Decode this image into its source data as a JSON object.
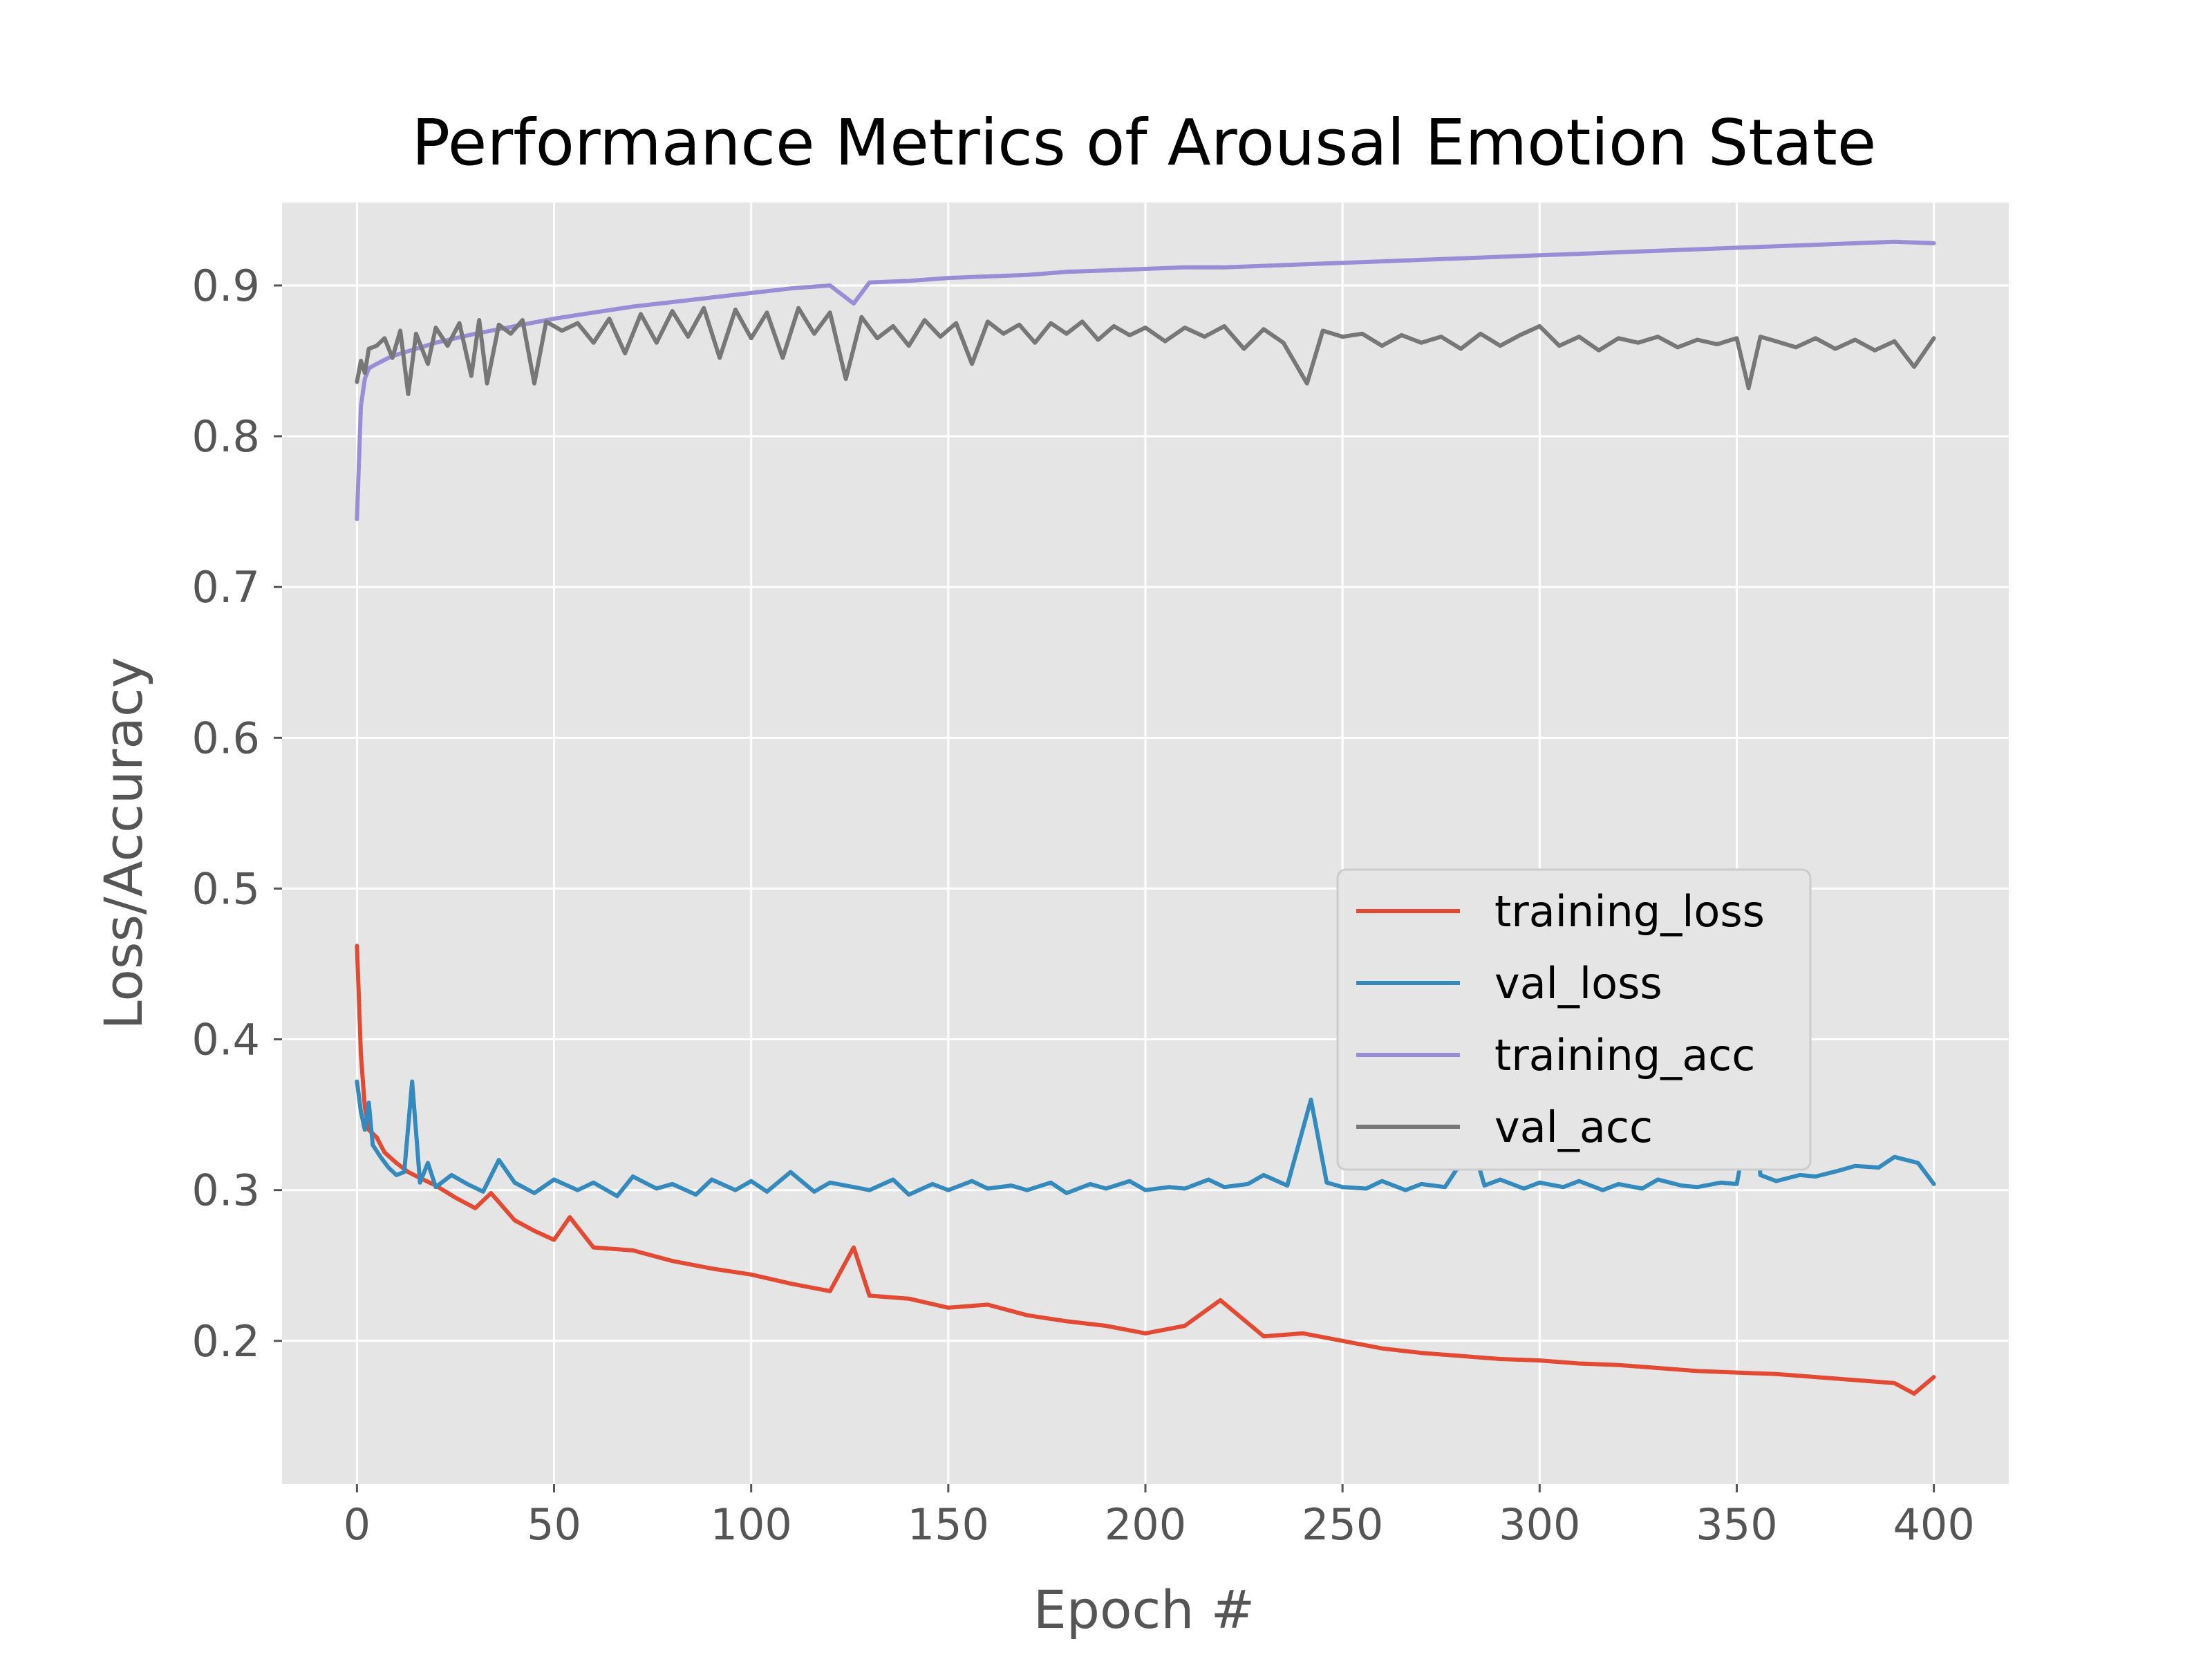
{
  "chart_data": {
    "type": "line",
    "title": "Performance Metrics of Arousal Emotion State",
    "xlabel": "Epoch #",
    "ylabel": "Loss/Accuracy",
    "xlim": [
      -19,
      419
    ],
    "ylim": [
      0.105,
      0.955
    ],
    "xticks": [
      0,
      50,
      100,
      150,
      200,
      250,
      300,
      350,
      400
    ],
    "xtick_labels": [
      "0",
      "50",
      "100",
      "150",
      "200",
      "250",
      "300",
      "350",
      "400"
    ],
    "yticks": [
      0.2,
      0.3,
      0.4,
      0.5,
      0.6,
      0.7,
      0.8,
      0.9
    ],
    "ytick_labels": [
      "0.2",
      "0.3",
      "0.4",
      "0.5",
      "0.6",
      "0.7",
      "0.8",
      "0.9"
    ],
    "grid": true,
    "legend_position": "center-right",
    "background_color": "#e5e5e5",
    "grid_color": "#ffffff",
    "series": [
      {
        "name": "training_loss",
        "color": "#e24a33",
        "x": [
          0,
          1,
          2,
          3,
          5,
          7,
          10,
          13,
          16,
          20,
          25,
          30,
          34,
          40,
          45,
          50,
          54,
          60,
          70,
          80,
          90,
          100,
          110,
          120,
          126,
          130,
          140,
          150,
          160,
          170,
          180,
          190,
          200,
          210,
          219,
          230,
          240,
          250,
          260,
          270,
          280,
          290,
          300,
          310,
          320,
          330,
          340,
          350,
          360,
          370,
          380,
          390,
          395,
          400
        ],
        "y": [
          0.462,
          0.39,
          0.355,
          0.34,
          0.335,
          0.325,
          0.318,
          0.312,
          0.308,
          0.303,
          0.295,
          0.288,
          0.298,
          0.28,
          0.273,
          0.267,
          0.282,
          0.262,
          0.26,
          0.253,
          0.248,
          0.244,
          0.238,
          0.233,
          0.262,
          0.23,
          0.228,
          0.222,
          0.224,
          0.217,
          0.213,
          0.21,
          0.205,
          0.21,
          0.227,
          0.203,
          0.205,
          0.2,
          0.195,
          0.192,
          0.19,
          0.188,
          0.187,
          0.185,
          0.184,
          0.182,
          0.18,
          0.179,
          0.178,
          0.176,
          0.174,
          0.172,
          0.165,
          0.176
        ]
      },
      {
        "name": "val_loss",
        "color": "#348abd",
        "x": [
          0,
          1,
          2,
          3,
          4,
          6,
          8,
          10,
          12,
          14,
          16,
          18,
          20,
          24,
          28,
          32,
          36,
          40,
          45,
          50,
          56,
          60,
          66,
          70,
          76,
          80,
          86,
          90,
          96,
          100,
          104,
          110,
          116,
          120,
          126,
          130,
          136,
          140,
          146,
          150,
          156,
          160,
          166,
          170,
          176,
          180,
          186,
          190,
          196,
          200,
          206,
          210,
          216,
          220,
          226,
          230,
          236,
          242,
          246,
          250,
          256,
          260,
          266,
          270,
          276,
          283,
          286,
          290,
          296,
          300,
          306,
          310,
          316,
          320,
          326,
          330,
          336,
          340,
          346,
          350,
          354,
          356,
          360,
          366,
          370,
          376,
          380,
          386,
          390,
          396,
          400
        ],
        "y": [
          0.372,
          0.352,
          0.34,
          0.358,
          0.33,
          0.322,
          0.315,
          0.31,
          0.312,
          0.372,
          0.305,
          0.318,
          0.302,
          0.31,
          0.304,
          0.299,
          0.32,
          0.305,
          0.298,
          0.307,
          0.3,
          0.305,
          0.296,
          0.309,
          0.301,
          0.304,
          0.297,
          0.307,
          0.3,
          0.306,
          0.299,
          0.312,
          0.299,
          0.305,
          0.302,
          0.3,
          0.307,
          0.297,
          0.304,
          0.3,
          0.306,
          0.301,
          0.303,
          0.3,
          0.305,
          0.298,
          0.304,
          0.301,
          0.306,
          0.3,
          0.302,
          0.301,
          0.307,
          0.302,
          0.304,
          0.31,
          0.303,
          0.36,
          0.305,
          0.302,
          0.301,
          0.306,
          0.3,
          0.304,
          0.302,
          0.33,
          0.303,
          0.307,
          0.301,
          0.305,
          0.302,
          0.306,
          0.3,
          0.304,
          0.301,
          0.307,
          0.303,
          0.302,
          0.305,
          0.304,
          0.363,
          0.31,
          0.306,
          0.31,
          0.309,
          0.313,
          0.316,
          0.315,
          0.322,
          0.318,
          0.304
        ]
      },
      {
        "name": "training_acc",
        "color": "#988ed5",
        "x": [
          0,
          1,
          2,
          3,
          5,
          8,
          10,
          15,
          20,
          25,
          30,
          40,
          50,
          60,
          70,
          80,
          90,
          100,
          110,
          120,
          126,
          130,
          140,
          150,
          160,
          170,
          180,
          190,
          200,
          210,
          220,
          230,
          240,
          250,
          260,
          270,
          280,
          290,
          300,
          310,
          320,
          330,
          340,
          350,
          360,
          370,
          380,
          390,
          400
        ],
        "y": [
          0.745,
          0.82,
          0.838,
          0.845,
          0.848,
          0.852,
          0.854,
          0.858,
          0.862,
          0.865,
          0.868,
          0.873,
          0.878,
          0.882,
          0.886,
          0.889,
          0.892,
          0.895,
          0.898,
          0.9,
          0.888,
          0.902,
          0.903,
          0.905,
          0.906,
          0.907,
          0.909,
          0.91,
          0.911,
          0.912,
          0.912,
          0.913,
          0.914,
          0.915,
          0.916,
          0.917,
          0.918,
          0.919,
          0.92,
          0.921,
          0.922,
          0.923,
          0.924,
          0.925,
          0.926,
          0.927,
          0.928,
          0.929,
          0.928
        ]
      },
      {
        "name": "val_acc",
        "color": "#777777",
        "x": [
          0,
          1,
          2,
          3,
          5,
          7,
          9,
          11,
          13,
          15,
          18,
          20,
          23,
          26,
          29,
          31,
          33,
          36,
          39,
          42,
          45,
          48,
          52,
          56,
          60,
          64,
          68,
          72,
          76,
          80,
          84,
          88,
          92,
          96,
          100,
          104,
          108,
          112,
          116,
          120,
          124,
          128,
          132,
          136,
          140,
          144,
          148,
          152,
          156,
          160,
          164,
          168,
          172,
          176,
          180,
          184,
          188,
          192,
          196,
          200,
          205,
          210,
          215,
          220,
          225,
          230,
          235,
          241,
          245,
          250,
          255,
          260,
          265,
          270,
          275,
          280,
          285,
          290,
          295,
          300,
          305,
          310,
          315,
          320,
          325,
          330,
          335,
          340,
          345,
          350,
          353,
          356,
          360,
          365,
          370,
          375,
          380,
          385,
          390,
          395,
          400
        ],
        "y": [
          0.836,
          0.85,
          0.842,
          0.858,
          0.86,
          0.865,
          0.852,
          0.87,
          0.828,
          0.868,
          0.848,
          0.872,
          0.86,
          0.875,
          0.84,
          0.877,
          0.835,
          0.874,
          0.868,
          0.877,
          0.835,
          0.876,
          0.87,
          0.875,
          0.862,
          0.878,
          0.855,
          0.881,
          0.862,
          0.883,
          0.866,
          0.885,
          0.852,
          0.884,
          0.865,
          0.882,
          0.852,
          0.885,
          0.868,
          0.882,
          0.838,
          0.879,
          0.865,
          0.873,
          0.86,
          0.877,
          0.866,
          0.875,
          0.848,
          0.876,
          0.868,
          0.874,
          0.862,
          0.875,
          0.868,
          0.876,
          0.864,
          0.873,
          0.867,
          0.872,
          0.863,
          0.872,
          0.866,
          0.873,
          0.858,
          0.871,
          0.862,
          0.835,
          0.87,
          0.866,
          0.868,
          0.86,
          0.867,
          0.862,
          0.866,
          0.858,
          0.868,
          0.86,
          0.867,
          0.873,
          0.86,
          0.866,
          0.857,
          0.865,
          0.862,
          0.866,
          0.859,
          0.864,
          0.861,
          0.865,
          0.832,
          0.866,
          0.863,
          0.859,
          0.865,
          0.858,
          0.864,
          0.857,
          0.863,
          0.846,
          0.865
        ]
      }
    ]
  }
}
